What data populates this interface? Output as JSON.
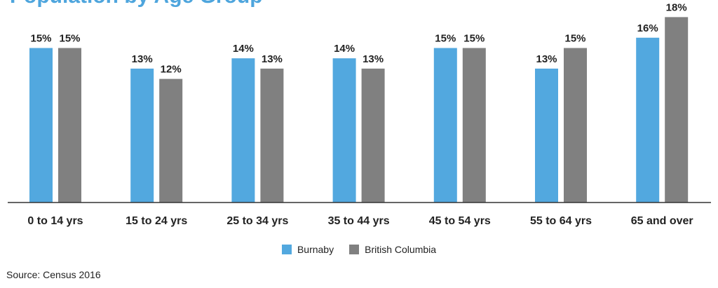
{
  "chart_data": {
    "type": "bar",
    "title": "Population by Age Group",
    "categories": [
      "0 to 14 yrs",
      "15 to 24 yrs",
      "25 to 34 yrs",
      "35 to 44 yrs",
      "45 to 54 yrs",
      "55 to 64 yrs",
      "65 and over"
    ],
    "series": [
      {
        "name": "Burnaby",
        "color": "#52a8df",
        "values": [
          15,
          13,
          14,
          14,
          15,
          13,
          16
        ],
        "labels": [
          "15%",
          "13%",
          "14%",
          "14%",
          "15%",
          "13%",
          "16%"
        ]
      },
      {
        "name": "British Columbia",
        "color": "#808080",
        "values": [
          15,
          12,
          13,
          13,
          15,
          15,
          18
        ],
        "labels": [
          "15%",
          "12%",
          "13%",
          "13%",
          "15%",
          "15%",
          "18%"
        ]
      }
    ],
    "ylim": [
      0,
      18
    ],
    "grid": false,
    "legend_position": "bottom-center"
  },
  "source": "Source: Census 2016"
}
